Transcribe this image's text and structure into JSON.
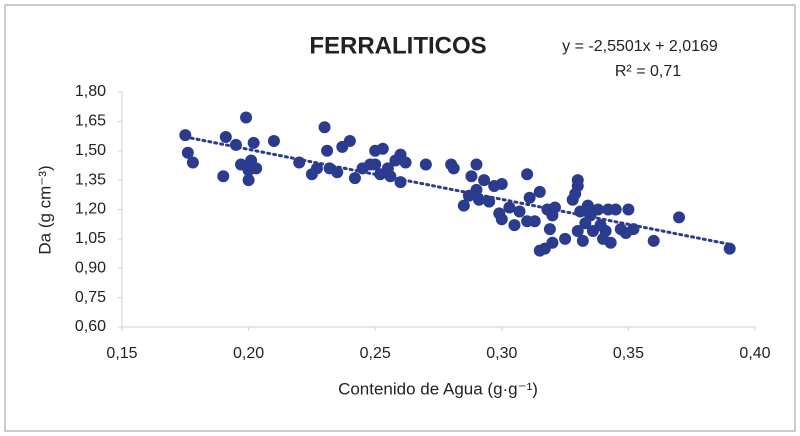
{
  "chart_data": {
    "type": "scatter",
    "title": "FERRALITICOS",
    "annotations": [
      "y = -2,5501x + 2,0169",
      "R² = 0,71"
    ],
    "xlabel": "Contenido de Agua (g·g⁻¹)",
    "ylabel": "Da (g cm⁻³)",
    "color": "#2b3c8e",
    "x": [
      0.175,
      0.176,
      0.178,
      0.19,
      0.191,
      0.195,
      0.197,
      0.199,
      0.2,
      0.2,
      0.201,
      0.202,
      0.203,
      0.21,
      0.22,
      0.225,
      0.227,
      0.23,
      0.231,
      0.232,
      0.235,
      0.237,
      0.24,
      0.242,
      0.245,
      0.248,
      0.25,
      0.25,
      0.252,
      0.253,
      0.255,
      0.256,
      0.258,
      0.26,
      0.26,
      0.262,
      0.27,
      0.28,
      0.281,
      0.285,
      0.287,
      0.288,
      0.29,
      0.29,
      0.291,
      0.293,
      0.295,
      0.297,
      0.299,
      0.3,
      0.3,
      0.303,
      0.305,
      0.307,
      0.31,
      0.31,
      0.311,
      0.313,
      0.315,
      0.315,
      0.317,
      0.318,
      0.319,
      0.32,
      0.32,
      0.321,
      0.328,
      0.329,
      0.33,
      0.33,
      0.331,
      0.332,
      0.333,
      0.334,
      0.335,
      0.336,
      0.338,
      0.339,
      0.34,
      0.341,
      0.342,
      0.343,
      0.345,
      0.347,
      0.349,
      0.35,
      0.352,
      0.36,
      0.37,
      0.39,
      0.33,
      0.325
    ],
    "values": [
      1.58,
      1.49,
      1.44,
      1.37,
      1.57,
      1.53,
      1.43,
      1.67,
      1.35,
      1.4,
      1.45,
      1.54,
      1.41,
      1.55,
      1.44,
      1.38,
      1.41,
      1.62,
      1.5,
      1.41,
      1.39,
      1.52,
      1.55,
      1.36,
      1.41,
      1.43,
      1.43,
      1.5,
      1.38,
      1.51,
      1.41,
      1.37,
      1.45,
      1.48,
      1.34,
      1.44,
      1.43,
      1.43,
      1.41,
      1.22,
      1.27,
      1.37,
      1.43,
      1.3,
      1.25,
      1.35,
      1.24,
      1.32,
      1.18,
      1.15,
      1.33,
      1.21,
      1.12,
      1.19,
      1.38,
      1.14,
      1.26,
      1.14,
      1.29,
      0.99,
      1.0,
      1.2,
      1.1,
      1.17,
      1.03,
      1.21,
      1.25,
      1.28,
      1.09,
      1.35,
      1.19,
      1.04,
      1.13,
      1.22,
      1.17,
      1.09,
      1.2,
      1.12,
      1.05,
      1.09,
      1.2,
      1.03,
      1.2,
      1.1,
      1.08,
      1.2,
      1.1,
      1.04,
      1.16,
      1.0,
      1.32,
      1.05
    ],
    "trendline": {
      "x": [
        0.175,
        0.39
      ],
      "values": [
        1.5706,
        1.0224
      ],
      "color": "#2b3c8e"
    },
    "xlim": [
      0.15,
      0.4
    ],
    "xticks": [
      {
        "value": 0.15,
        "label": "0,15"
      },
      {
        "value": 0.2,
        "label": "0,20"
      },
      {
        "value": 0.25,
        "label": "0,25"
      },
      {
        "value": 0.3,
        "label": "0,30"
      },
      {
        "value": 0.35,
        "label": "0,35"
      },
      {
        "value": 0.4,
        "label": "0,40"
      }
    ],
    "ylim": [
      0.6,
      1.8
    ],
    "yticks": [
      {
        "value": 0.6,
        "label": "0,60"
      },
      {
        "value": 0.75,
        "label": "0,75"
      },
      {
        "value": 0.9,
        "label": "0,90"
      },
      {
        "value": 1.05,
        "label": "1,05"
      },
      {
        "value": 1.2,
        "label": "1,20"
      },
      {
        "value": 1.35,
        "label": "1,35"
      },
      {
        "value": 1.5,
        "label": "1,50"
      },
      {
        "value": 1.65,
        "label": "1,65"
      },
      {
        "value": 1.8,
        "label": "1,80"
      }
    ],
    "grid": false
  }
}
